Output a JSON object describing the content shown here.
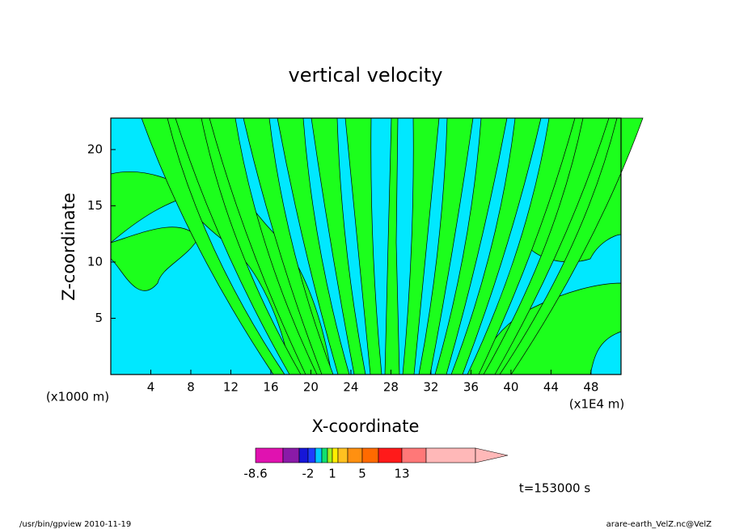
{
  "chart_data": {
    "type": "contour",
    "title": "vertical velocity",
    "x_label": "X-coordinate",
    "y_label": "Z-coordinate",
    "x_unit": "(x1E4 m)",
    "y_unit": "(x1000 m)",
    "xlim": [
      0,
      51
    ],
    "xticks": [
      4,
      8,
      12,
      16,
      20,
      24,
      28,
      32,
      36,
      40,
      44,
      48
    ],
    "ylim": [
      0,
      22.8
    ],
    "yticks": [
      5,
      10,
      15,
      20
    ],
    "field_colors": [
      "#00e8ff",
      "#1cff1c"
    ],
    "colorbar": {
      "colors": [
        "#e012b0",
        "#8a1aa8",
        "#1616d8",
        "#1e3cff",
        "#00c8ff",
        "#10e070",
        "#a0f020",
        "#ffee00",
        "#ffc020",
        "#ff9010",
        "#ff6a00",
        "#ff1a1a",
        "#ff7878",
        "#ffb8b8"
      ],
      "ticks": [
        -8.6,
        -2,
        1,
        5,
        13
      ]
    },
    "time_label": "t=153000 s",
    "footer_left": "/usr/bin/gpview   2010-11-19",
    "footer_right": "arare-earth_VelZ.nc@VelZ"
  }
}
